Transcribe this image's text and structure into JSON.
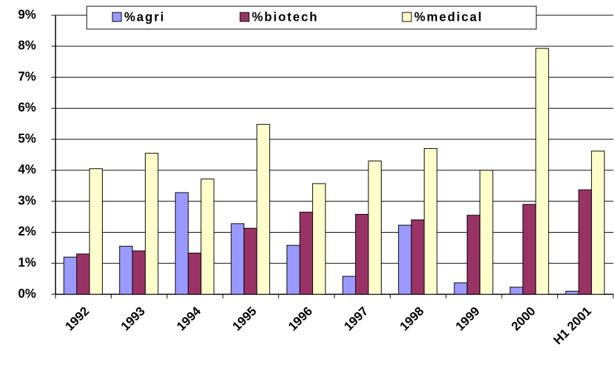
{
  "chart_data": {
    "type": "bar",
    "categories": [
      "1992",
      "1993",
      "1994",
      "1995",
      "1996",
      "1997",
      "1998",
      "1999",
      "2000",
      "H1 2001"
    ],
    "series": [
      {
        "name": "%agri",
        "color": "#9999ff",
        "values": [
          1.2,
          1.55,
          3.28,
          2.28,
          1.58,
          0.58,
          2.23,
          0.37,
          0.23,
          0.1
        ]
      },
      {
        "name": "%biotech",
        "color": "#993366",
        "values": [
          1.3,
          1.4,
          1.33,
          2.13,
          2.65,
          2.58,
          2.4,
          2.55,
          2.9,
          3.37
        ]
      },
      {
        "name": "%medical",
        "color": "#ffffcc",
        "values": [
          4.05,
          4.55,
          3.72,
          5.48,
          3.57,
          4.3,
          4.7,
          4.0,
          7.93,
          4.62
        ]
      }
    ],
    "ylim": [
      0,
      9
    ],
    "yticks": [
      {
        "value": 0,
        "label": "0%"
      },
      {
        "value": 1,
        "label": "1%"
      },
      {
        "value": 2,
        "label": "2%"
      },
      {
        "value": 3,
        "label": "3%"
      },
      {
        "value": 4,
        "label": "4%"
      },
      {
        "value": 5,
        "label": "5%"
      },
      {
        "value": 6,
        "label": "6%"
      },
      {
        "value": 7,
        "label": "7%"
      },
      {
        "value": 8,
        "label": "8%"
      },
      {
        "value": 9,
        "label": "9%"
      }
    ],
    "grid": true,
    "legend": "top"
  }
}
